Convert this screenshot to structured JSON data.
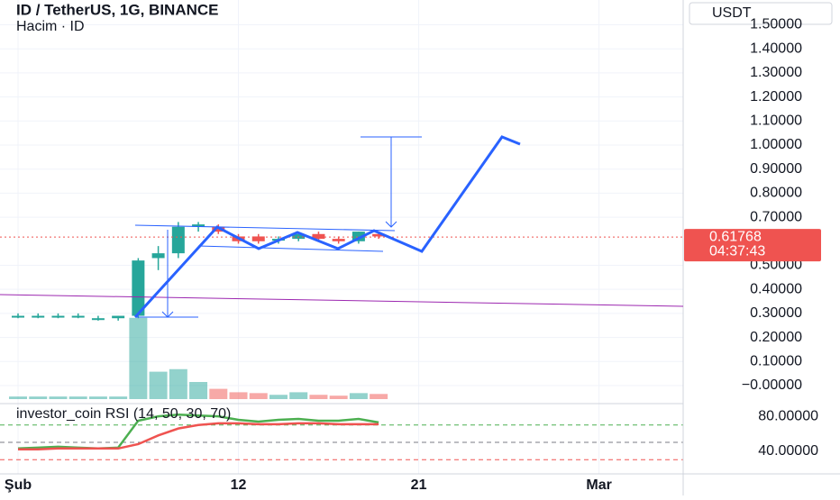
{
  "chart_data": {
    "type": "candlestick",
    "title": "ID / TetherUS, 1G, BINANCE",
    "subtitle": "Hacim · ID",
    "currency": "USDT",
    "x": [
      1,
      2,
      3,
      4,
      5,
      6,
      7,
      8,
      9,
      10,
      11,
      12,
      13,
      14,
      15,
      16,
      17,
      18,
      19
    ],
    "open": [
      0.29,
      0.29,
      0.29,
      0.29,
      0.28,
      0.28,
      0.29,
      0.53,
      0.55,
      0.66,
      0.66,
      0.62,
      0.62,
      0.61,
      0.61,
      0.63,
      0.61,
      0.6,
      0.63
    ],
    "high": [
      0.3,
      0.3,
      0.3,
      0.3,
      0.29,
      0.29,
      0.53,
      0.58,
      0.68,
      0.68,
      0.67,
      0.63,
      0.63,
      0.62,
      0.63,
      0.64,
      0.62,
      0.64,
      0.64
    ],
    "low": [
      0.28,
      0.28,
      0.28,
      0.28,
      0.27,
      0.27,
      0.28,
      0.48,
      0.53,
      0.64,
      0.63,
      0.59,
      0.59,
      0.59,
      0.6,
      0.6,
      0.59,
      0.59,
      0.61
    ],
    "close": [
      0.29,
      0.29,
      0.29,
      0.29,
      0.28,
      0.29,
      0.52,
      0.55,
      0.66,
      0.67,
      0.64,
      0.6,
      0.6,
      0.61,
      0.63,
      0.61,
      0.6,
      0.64,
      0.62
    ],
    "volume": [
      3,
      3,
      3,
      3,
      3,
      3,
      95,
      32,
      35,
      20,
      12,
      8,
      7,
      5,
      8,
      5,
      4,
      7,
      6
    ],
    "vlim": [
      0,
      100
    ],
    "up_color": "#26a69a",
    "down_color": "#ef5350",
    "xlim": [
      0.1,
      34.2
    ],
    "xticks": [
      {
        "value": 1,
        "label": "Şub"
      },
      12,
      21,
      {
        "value": 30,
        "label": "Mar"
      }
    ],
    "ylim": [
      -0.075,
      1.603
    ],
    "yticks": [
      {
        "value": 1.5,
        "label": "1.50000"
      },
      {
        "value": 1.4,
        "label": "1.40000"
      },
      {
        "value": 1.3,
        "label": "1.30000"
      },
      {
        "value": 1.2,
        "label": "1.20000"
      },
      {
        "value": 1.1,
        "label": "1.10000"
      },
      {
        "value": 1.0,
        "label": "1.00000"
      },
      {
        "value": 0.9,
        "label": "0.90000"
      },
      {
        "value": 0.8,
        "label": "0.80000"
      },
      {
        "value": 0.7,
        "label": "0.70000"
      },
      {
        "value": 0.5,
        "label": "0.50000"
      },
      {
        "value": 0.4,
        "label": "0.40000"
      },
      {
        "value": 0.3,
        "label": "0.30000"
      },
      {
        "value": 0.2,
        "label": "0.20000"
      },
      {
        "value": 0.1,
        "label": "0.10000"
      },
      {
        "value": 0,
        "label": "−0.00000"
      }
    ],
    "last_price": 0.61768,
    "countdown": "04:37:43",
    "grid": true,
    "rsi": {
      "title": "investor_coin RSI (14, 50, 30, 70)",
      "series": [
        {
          "name": "RSI",
          "color": "#4caf50",
          "values": [
            43,
            44,
            45,
            44,
            43,
            44,
            75,
            80,
            82,
            81,
            80,
            76,
            74,
            76,
            77,
            75,
            75,
            77,
            73
          ]
        },
        {
          "name": "MA",
          "color": "#ef5350",
          "values": [
            42,
            42,
            43,
            43,
            43,
            43,
            48,
            58,
            66,
            70,
            72,
            72,
            71,
            71,
            72,
            72,
            71,
            71,
            71
          ]
        }
      ],
      "ylim": [
        13.7,
        94.7
      ],
      "yticks": [
        {
          "value": 80,
          "label": "80.00000"
        },
        {
          "value": 40,
          "label": "40.00000"
        }
      ],
      "levels": [
        70,
        50,
        30
      ]
    }
  }
}
